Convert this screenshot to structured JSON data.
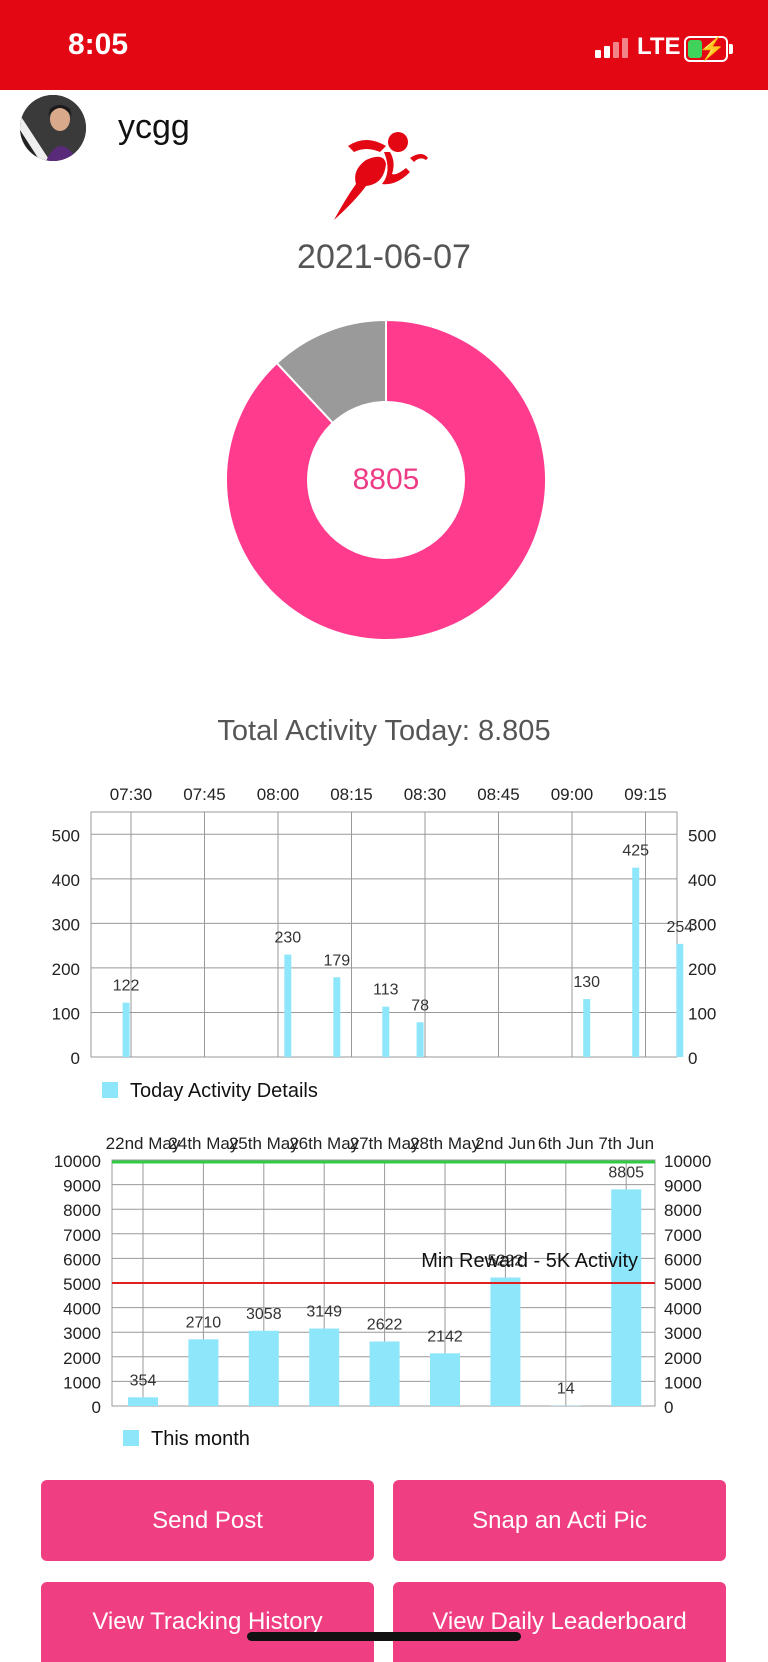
{
  "status_bar": {
    "time": "8:05",
    "network": "LTE",
    "icons": [
      "signal-icon",
      "battery-charging-icon"
    ]
  },
  "profile": {
    "username": "ycgg",
    "avatar_icon": "user-avatar"
  },
  "header": {
    "activity_icon": "running-man-icon",
    "date": "2021-06-07"
  },
  "summary": {
    "donut_value": "8805",
    "donut_goal": 10000,
    "colors": {
      "progress": "#ff3b8d",
      "remaining": "#9a9a9a"
    },
    "total_label": "Total Activity Today: 8.805"
  },
  "chart_data": [
    {
      "type": "bar",
      "legend": "Today Activity Details",
      "x_ticks": [
        "07:30",
        "07:45",
        "08:00",
        "08:15",
        "08:30",
        "08:45",
        "09:00",
        "09:15"
      ],
      "y_ticks": [
        0,
        100,
        200,
        300,
        400,
        500
      ],
      "ylim": [
        0,
        550
      ],
      "bars": [
        {
          "x": "07:29",
          "value": 122
        },
        {
          "x": "08:02",
          "value": 230
        },
        {
          "x": "08:12",
          "value": 179
        },
        {
          "x": "08:22",
          "value": 113
        },
        {
          "x": "08:29",
          "value": 78
        },
        {
          "x": "09:03",
          "value": 130
        },
        {
          "x": "09:13",
          "value": 425
        },
        {
          "x": "09:22",
          "value": 254
        }
      ],
      "color": "#8ee6fb",
      "grid": true
    },
    {
      "type": "bar",
      "legend": "This month",
      "categories": [
        "22nd May",
        "24th May",
        "25th May",
        "26th May",
        "27th May",
        "28th May",
        "2nd Jun",
        "6th Jun",
        "7th Jun"
      ],
      "values": [
        354,
        2710,
        3058,
        3149,
        2622,
        2142,
        5222,
        14,
        8805
      ],
      "y_ticks": [
        0,
        1000,
        2000,
        3000,
        4000,
        5000,
        6000,
        7000,
        8000,
        9000,
        10000
      ],
      "ylim": [
        0,
        10000
      ],
      "goal_line": {
        "value": 10000,
        "color": "#2ecc40"
      },
      "reward_line": {
        "value": 5000,
        "color": "#e02020",
        "label": "Min Reward - 5K Activity"
      },
      "color": "#8ee6fb",
      "grid": true
    }
  ],
  "buttons": {
    "send_post": "Send Post",
    "snap_pic": "Snap an Acti Pic",
    "tracking_history": "View Tracking History",
    "leaderboard": "View Daily Leaderboard"
  }
}
